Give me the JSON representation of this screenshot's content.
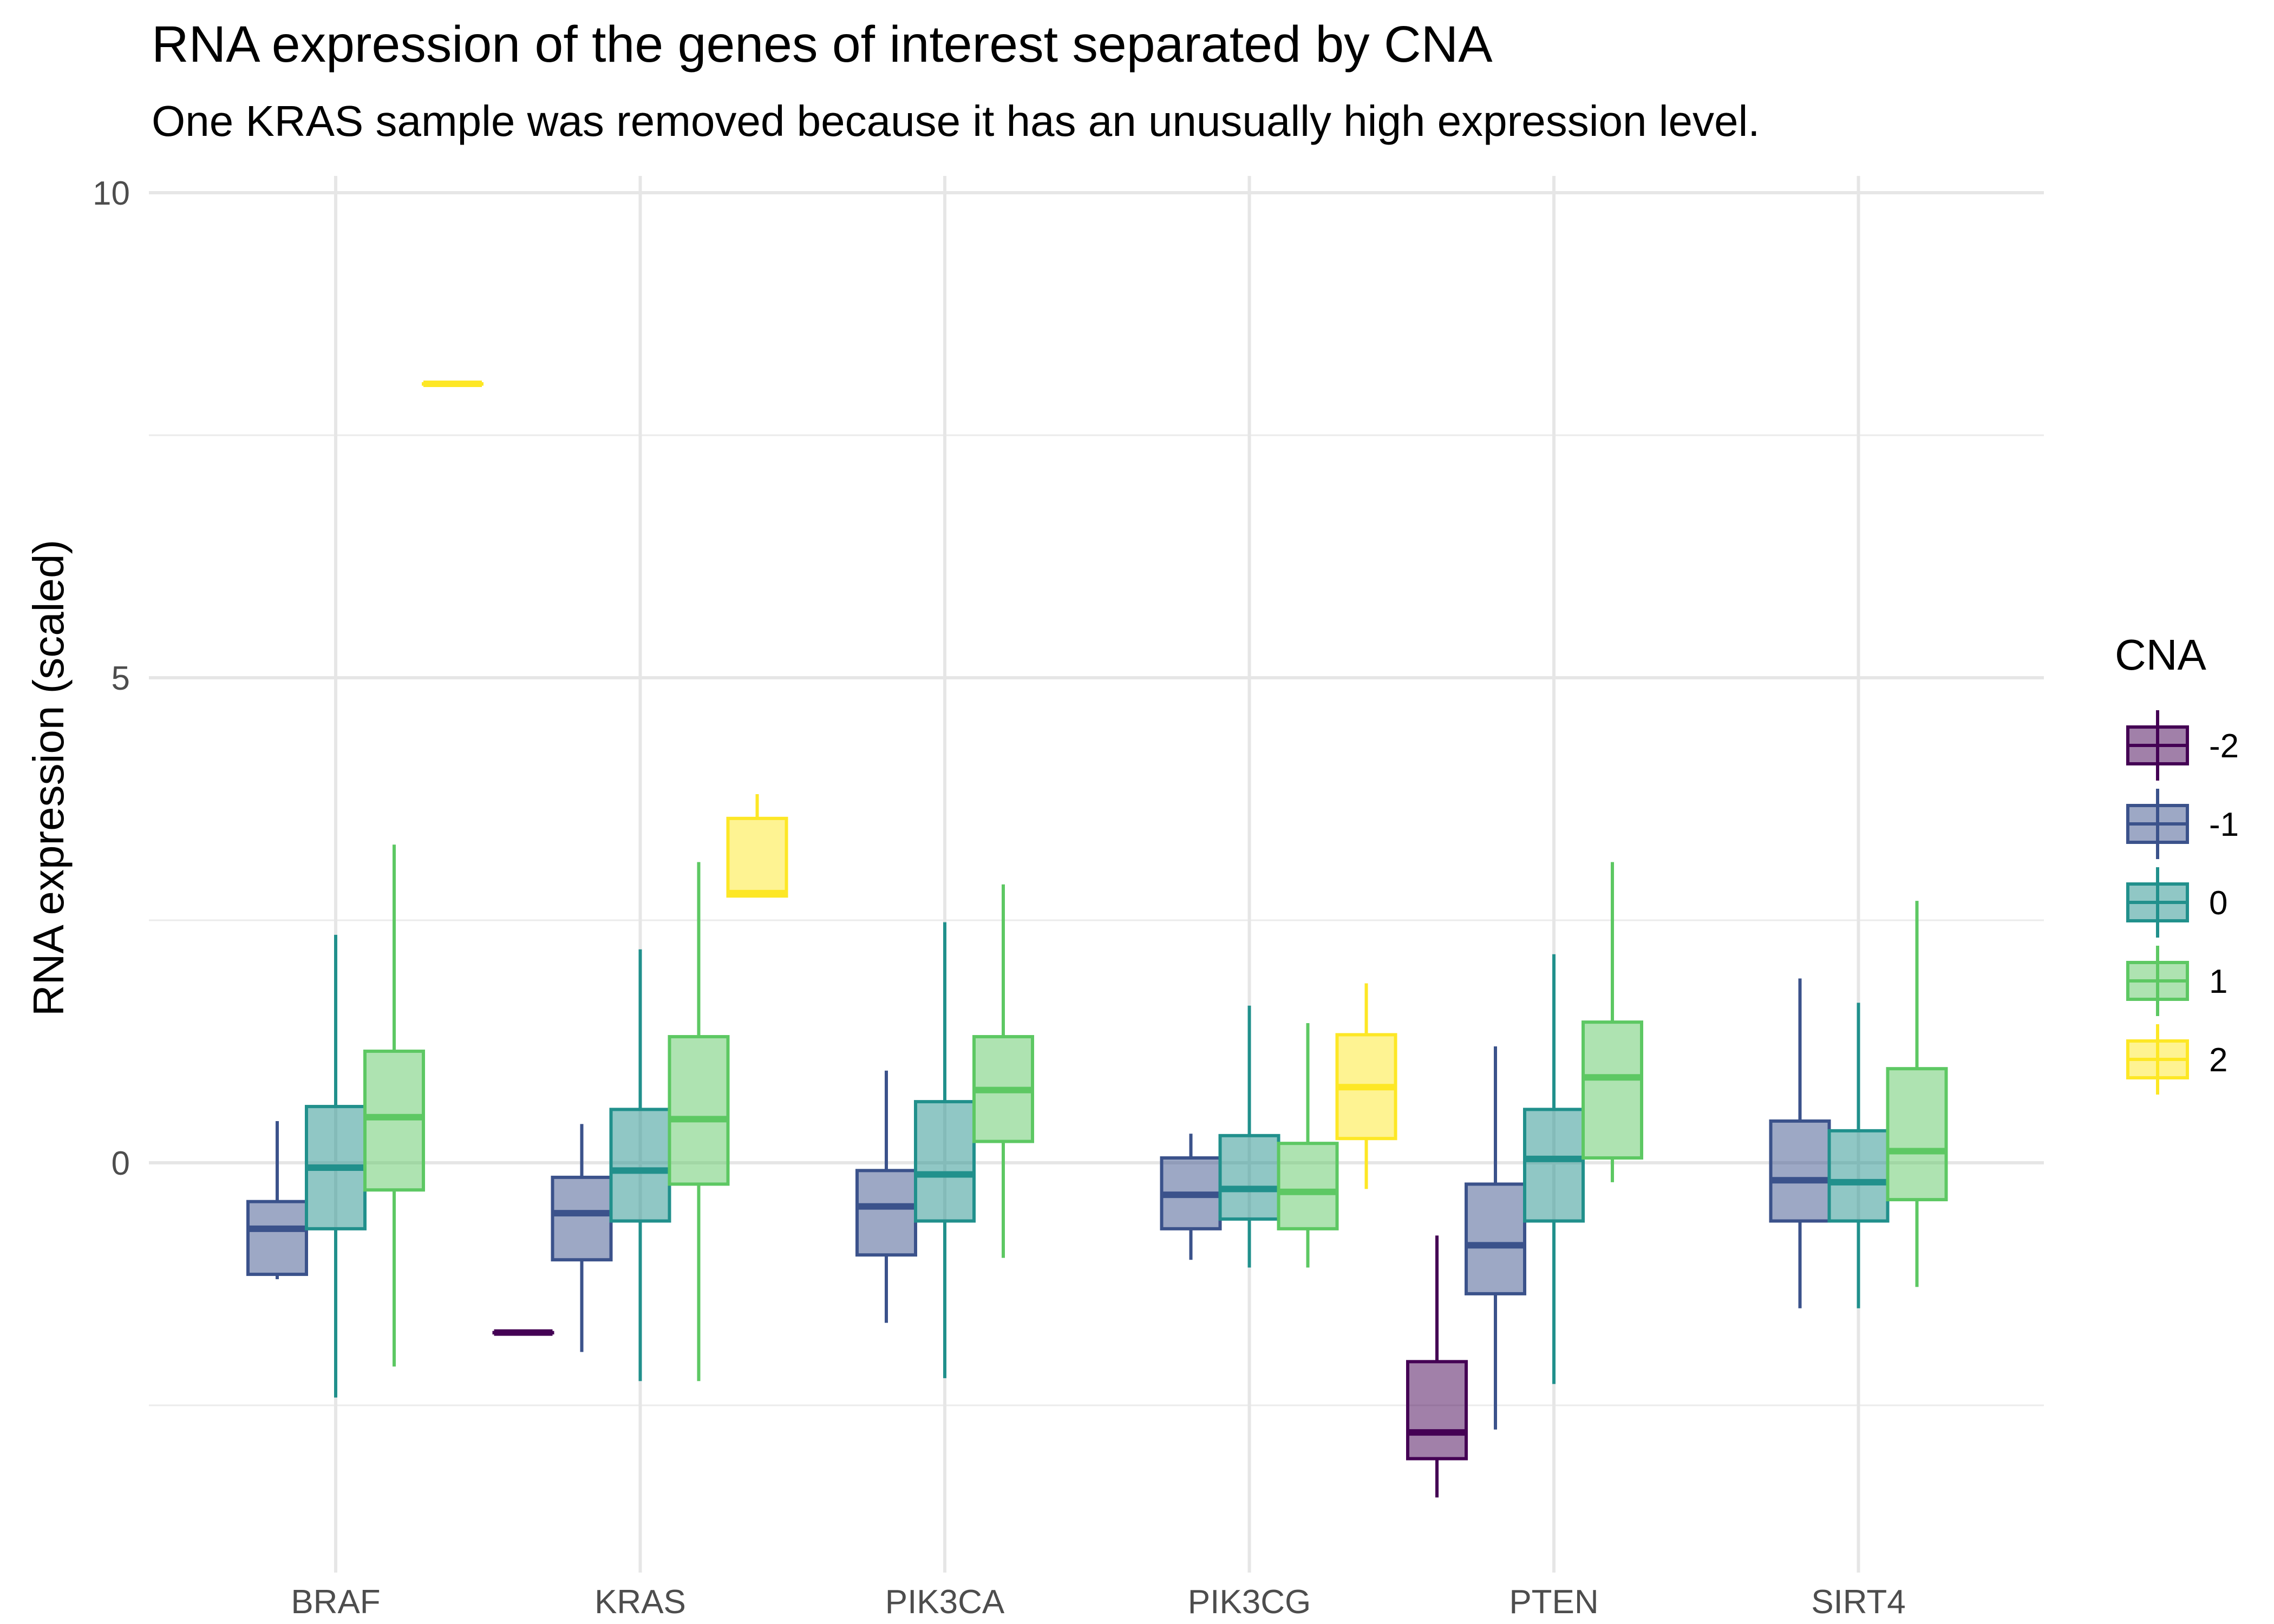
{
  "chart_data": {
    "type": "boxplot",
    "title": "RNA expression of the genes of interest separated by CNA",
    "subtitle": "One KRAS sample was removed because it has an unusually high expression level.",
    "xlabel": "",
    "ylabel": "RNA expression (scaled)",
    "ylim": [
      -3.9,
      10.2
    ],
    "yticks": [
      0,
      5,
      10
    ],
    "grid": true,
    "categories": [
      "BRAF",
      "KRAS",
      "PIK3CA",
      "PIK3CG",
      "PTEN",
      "SIRT4"
    ],
    "legend": {
      "title": "CNA",
      "placement": "right"
    },
    "series": [
      {
        "name": "-2",
        "color": "#440154",
        "boxes": [
          {
            "category": "KRAS",
            "min": -1.75,
            "q1": -1.75,
            "median": -1.75,
            "q3": -1.75,
            "max": -1.75
          },
          {
            "category": "PTEN",
            "min": -3.45,
            "q1": -3.05,
            "median": -2.78,
            "q3": -2.05,
            "max": -0.75
          }
        ]
      },
      {
        "name": "-1",
        "color": "#3B528B",
        "boxes": [
          {
            "category": "BRAF",
            "min": -1.2,
            "q1": -1.15,
            "median": -0.68,
            "q3": -0.4,
            "max": 0.43
          },
          {
            "category": "KRAS",
            "min": -1.95,
            "q1": -1.0,
            "median": -0.52,
            "q3": -0.15,
            "max": 0.4
          },
          {
            "category": "PIK3CA",
            "min": -1.65,
            "q1": -0.95,
            "median": -0.45,
            "q3": -0.08,
            "max": 0.95
          },
          {
            "category": "PIK3CG",
            "min": -1.0,
            "q1": -0.68,
            "median": -0.33,
            "q3": 0.05,
            "max": 0.3
          },
          {
            "category": "PTEN",
            "min": -2.75,
            "q1": -1.35,
            "median": -0.85,
            "q3": -0.22,
            "max": 1.2
          },
          {
            "category": "SIRT4",
            "min": -1.5,
            "q1": -0.6,
            "median": -0.18,
            "q3": 0.43,
            "max": 1.9
          }
        ]
      },
      {
        "name": "0",
        "color": "#21908C",
        "boxes": [
          {
            "category": "BRAF",
            "min": -2.42,
            "q1": -0.68,
            "median": -0.05,
            "q3": 0.58,
            "max": 2.35
          },
          {
            "category": "KRAS",
            "min": -2.25,
            "q1": -0.6,
            "median": -0.08,
            "q3": 0.55,
            "max": 2.2
          },
          {
            "category": "PIK3CA",
            "min": -2.22,
            "q1": -0.6,
            "median": -0.12,
            "q3": 0.63,
            "max": 2.48
          },
          {
            "category": "PIK3CG",
            "min": -1.08,
            "q1": -0.58,
            "median": -0.27,
            "q3": 0.28,
            "max": 1.62
          },
          {
            "category": "PTEN",
            "min": -2.28,
            "q1": -0.6,
            "median": 0.04,
            "q3": 0.55,
            "max": 2.15
          },
          {
            "category": "SIRT4",
            "min": -1.5,
            "q1": -0.6,
            "median": -0.2,
            "q3": 0.33,
            "max": 1.65
          }
        ]
      },
      {
        "name": "1",
        "color": "#5DC863",
        "boxes": [
          {
            "category": "BRAF",
            "min": -2.1,
            "q1": -0.28,
            "median": 0.47,
            "q3": 1.15,
            "max": 3.28
          },
          {
            "category": "KRAS",
            "min": -2.25,
            "q1": -0.22,
            "median": 0.45,
            "q3": 1.3,
            "max": 3.1
          },
          {
            "category": "PIK3CA",
            "min": -0.98,
            "q1": 0.22,
            "median": 0.75,
            "q3": 1.3,
            "max": 2.87
          },
          {
            "category": "PIK3CG",
            "min": -1.08,
            "q1": -0.68,
            "median": -0.3,
            "q3": 0.2,
            "max": 1.44
          },
          {
            "category": "PTEN",
            "min": -0.2,
            "q1": 0.05,
            "median": 0.88,
            "q3": 1.45,
            "max": 3.1
          },
          {
            "category": "SIRT4",
            "min": -1.28,
            "q1": -0.38,
            "median": 0.12,
            "q3": 0.97,
            "max": 2.7
          }
        ]
      },
      {
        "name": "2",
        "color": "#FDE725",
        "boxes": [
          {
            "category": "BRAF",
            "min": 8.03,
            "q1": 8.03,
            "median": 8.03,
            "q3": 8.03,
            "max": 8.03
          },
          {
            "category": "KRAS",
            "min": 2.75,
            "q1": 2.75,
            "median": 2.78,
            "q3": 3.55,
            "max": 3.8
          },
          {
            "category": "PIK3CG",
            "min": -0.27,
            "q1": 0.25,
            "median": 0.78,
            "q3": 1.32,
            "max": 1.85
          }
        ]
      }
    ]
  }
}
